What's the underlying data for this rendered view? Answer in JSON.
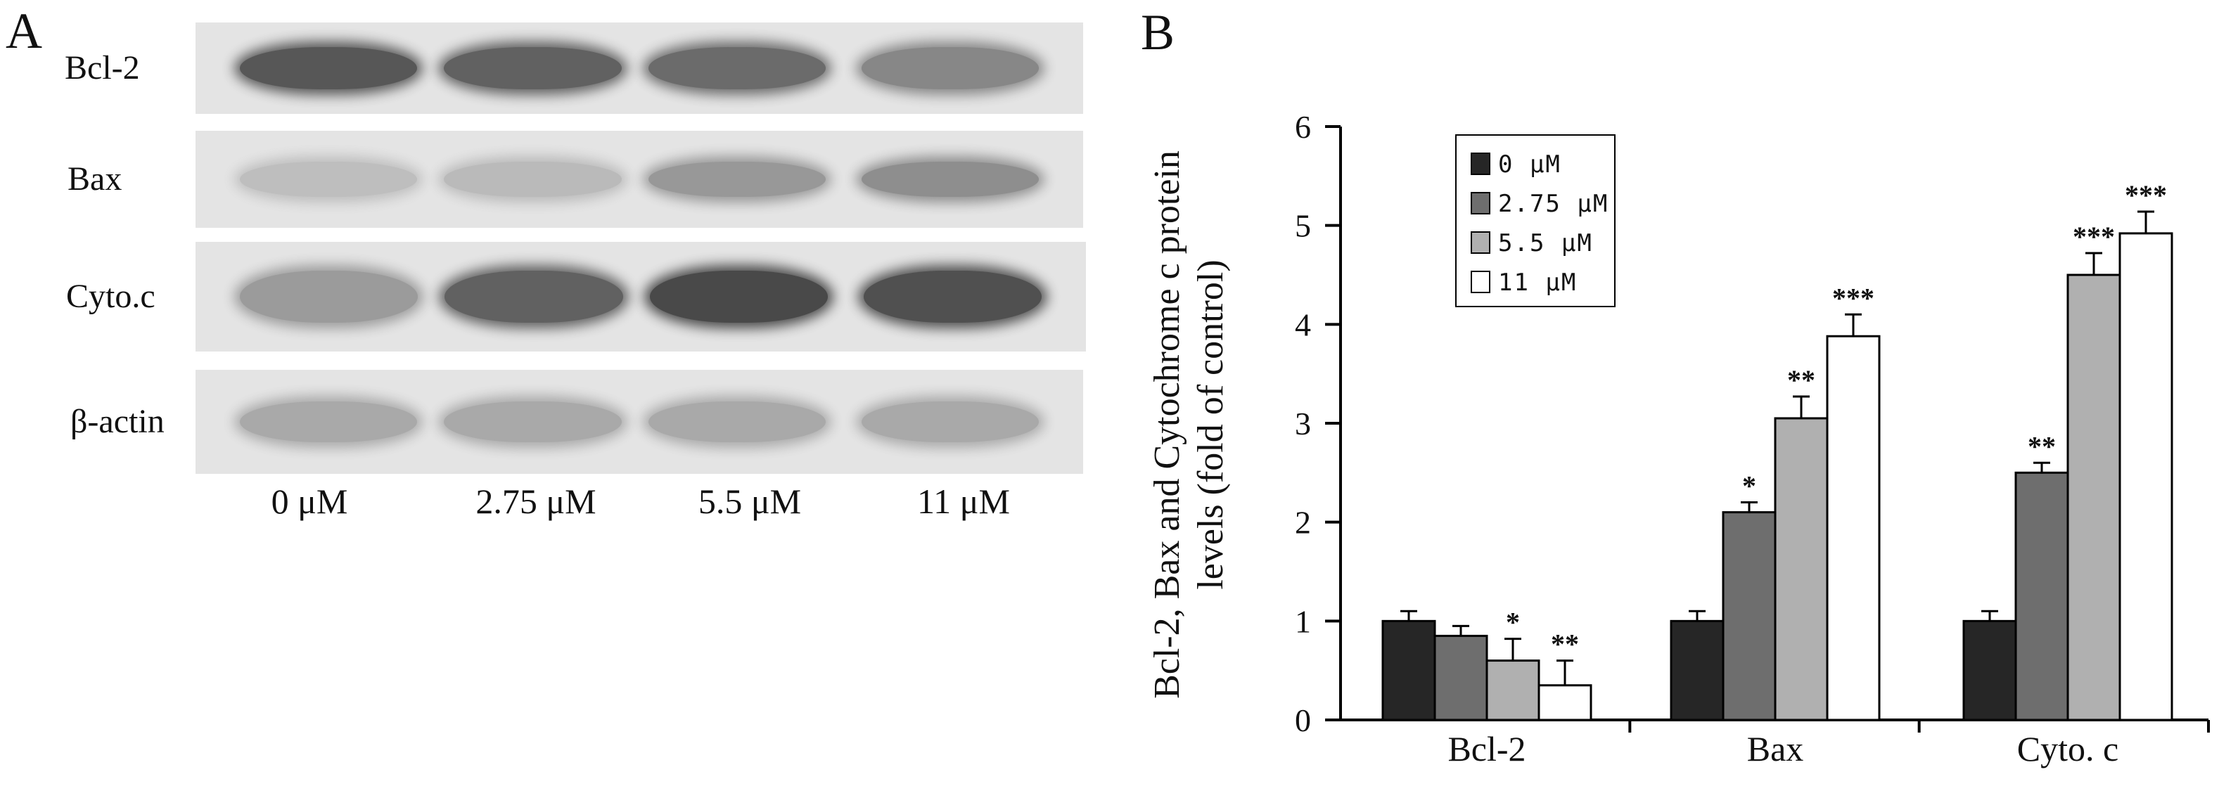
{
  "panels": {
    "a": "A",
    "b": "B"
  },
  "blot": {
    "rows": [
      {
        "label": "Bcl-2",
        "intensity": [
          0.78,
          0.72,
          0.66,
          0.5
        ]
      },
      {
        "label": "Bax",
        "intensity": [
          0.18,
          0.2,
          0.4,
          0.46
        ]
      },
      {
        "label": "Cyto.c",
        "intensity": [
          0.38,
          0.72,
          0.86,
          0.82
        ]
      },
      {
        "label": "β-actin",
        "intensity": [
          0.3,
          0.3,
          0.3,
          0.3
        ]
      }
    ],
    "concentrations": [
      "0 μM",
      "2.75 μM",
      "5.5 μM",
      "11 μM"
    ]
  },
  "chart_data": {
    "type": "bar",
    "categories": [
      "Bcl-2",
      "Bax",
      "Cyto. c"
    ],
    "series": [
      {
        "name": "0 μM",
        "color": "#262626",
        "values": [
          1.0,
          1.0,
          1.0
        ],
        "errors": [
          0.1,
          0.1,
          0.1
        ],
        "sig": [
          "",
          "",
          ""
        ]
      },
      {
        "name": "2.75 μM",
        "color": "#6e6e6e",
        "values": [
          0.85,
          2.1,
          2.5
        ],
        "errors": [
          0.1,
          0.1,
          0.1
        ],
        "sig": [
          "",
          "*",
          "**"
        ]
      },
      {
        "name": "5.5 μM",
        "color": "#b0b0b0",
        "values": [
          0.6,
          3.05,
          4.5
        ],
        "errors": [
          0.22,
          0.22,
          0.22
        ],
        "sig": [
          "*",
          "**",
          "***"
        ]
      },
      {
        "name": "11 μM",
        "color": "#ffffff",
        "values": [
          0.35,
          3.88,
          4.92
        ],
        "errors": [
          0.25,
          0.22,
          0.22
        ],
        "sig": [
          "**",
          "***",
          "***"
        ]
      }
    ],
    "ylabel_lines": [
      "Bcl-2, Bax and Cytochrome c  protein",
      "levels (fold of control)"
    ],
    "xlabel": "",
    "ylim": [
      0,
      6
    ],
    "yticks": [
      "0",
      "1",
      "2",
      "3",
      "4",
      "5",
      "6"
    ],
    "grid": false,
    "legend_position": "top-left"
  }
}
